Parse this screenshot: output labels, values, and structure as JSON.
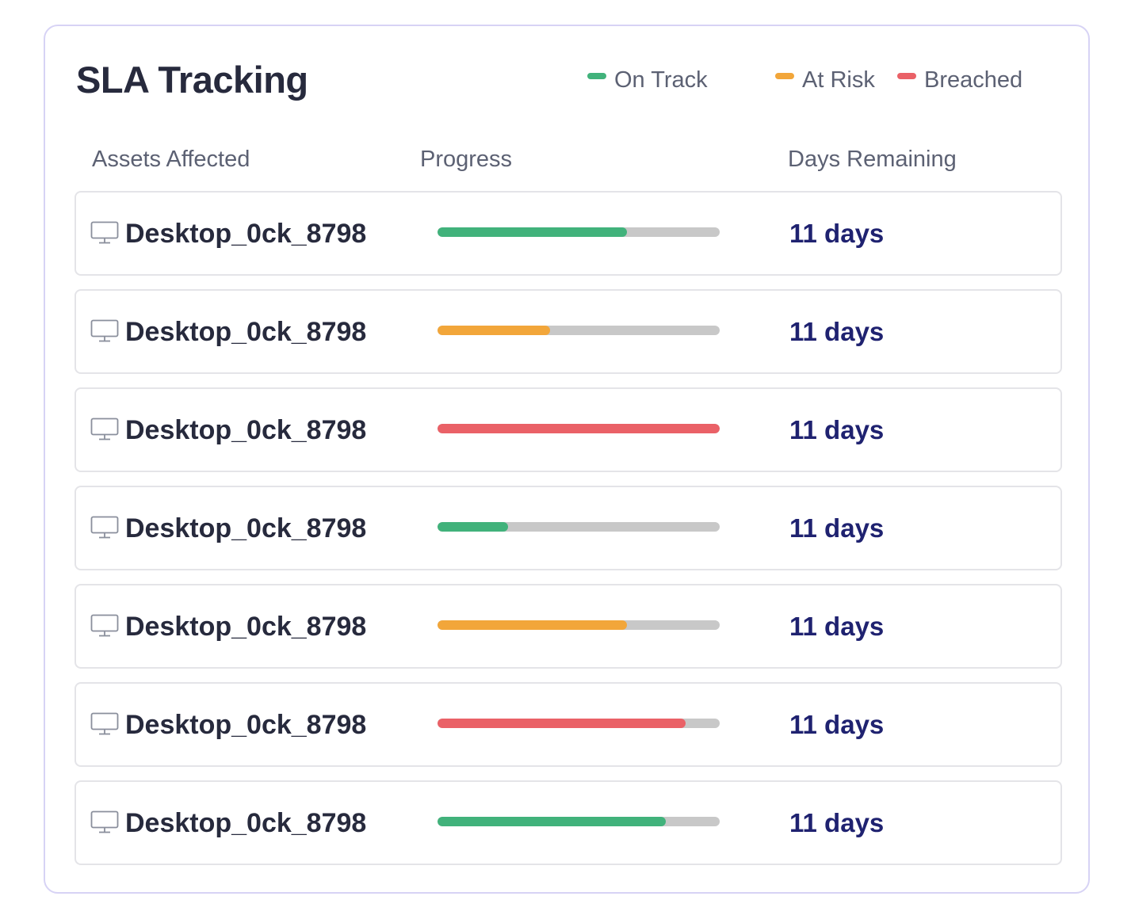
{
  "title": "SLA Tracking",
  "legend": [
    {
      "label": "On Track",
      "color": "#41b27b"
    },
    {
      "label": "At Risk",
      "color": "#f2a63a"
    },
    {
      "label": "Breached",
      "color": "#ea6167"
    }
  ],
  "columns": {
    "assets": "Assets Affected",
    "progress": "Progress",
    "days": "Days Remaining"
  },
  "track_color": "#c8c8c8",
  "rows": [
    {
      "asset": "Desktop_0ck_8798",
      "icon": "monitor-icon",
      "status": "on-track",
      "progress": 0.67,
      "days": "11 days"
    },
    {
      "asset": "Desktop_0ck_8798",
      "icon": "monitor-icon",
      "status": "at-risk",
      "progress": 0.4,
      "days": "11 days"
    },
    {
      "asset": "Desktop_0ck_8798",
      "icon": "monitor-icon",
      "status": "breached",
      "progress": 1.0,
      "days": "11 days"
    },
    {
      "asset": "Desktop_0ck_8798",
      "icon": "monitor-icon",
      "status": "on-track",
      "progress": 0.25,
      "days": "11 days"
    },
    {
      "asset": "Desktop_0ck_8798",
      "icon": "monitor-icon",
      "status": "at-risk",
      "progress": 0.67,
      "days": "11 days"
    },
    {
      "asset": "Desktop_0ck_8798",
      "icon": "monitor-icon",
      "status": "breached",
      "progress": 0.88,
      "days": "11 days"
    },
    {
      "asset": "Desktop_0ck_8798",
      "icon": "monitor-icon",
      "status": "on-track",
      "progress": 0.81,
      "days": "11 days"
    }
  ],
  "status_colors": {
    "on-track": "#41b27b",
    "at-risk": "#f2a63a",
    "breached": "#ea6167"
  }
}
